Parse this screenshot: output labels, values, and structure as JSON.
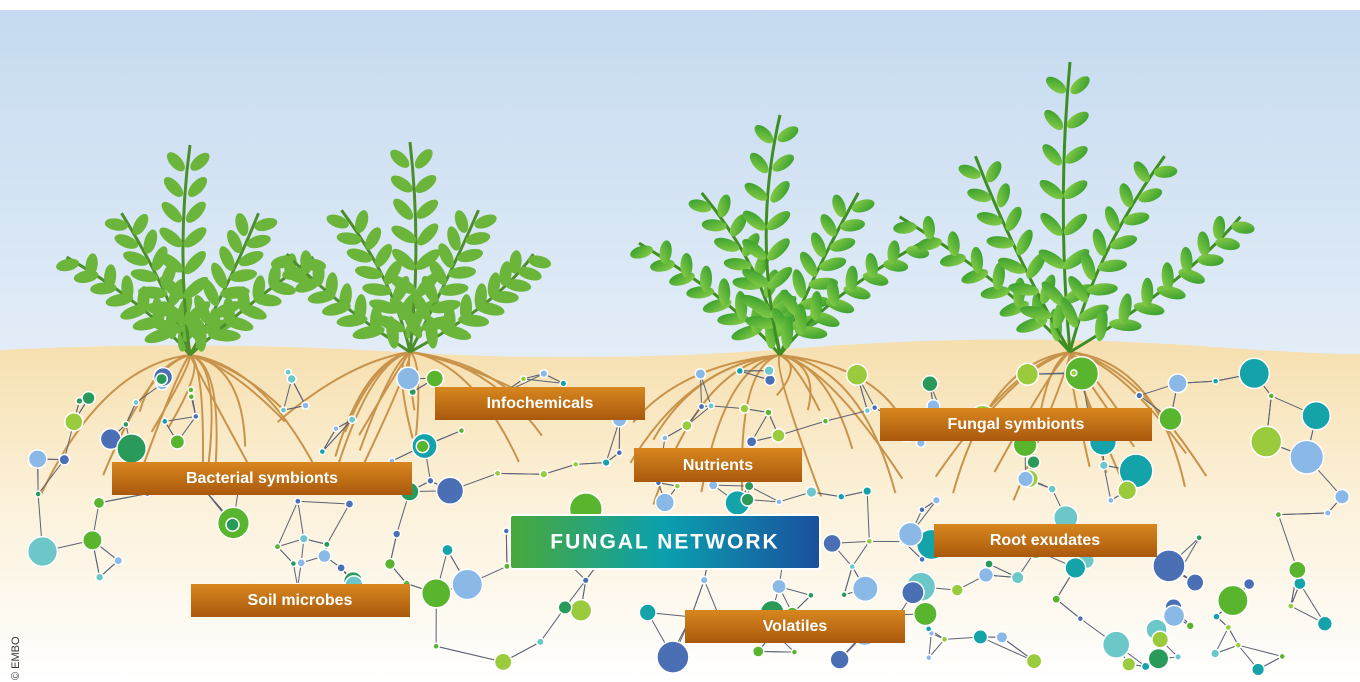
{
  "labels": {
    "infochemicals": "Infochemicals",
    "bacterial_symbionts": "Bacterial symbionts",
    "nutrients": "Nutrients",
    "fungal_symbionts": "Fungal symbionts",
    "root_exudates": "Root exudates",
    "soil_microbes": "Soil microbes",
    "volatiles": "Volatiles"
  },
  "network_label": "FUNGAL NETWORK",
  "credit": "© EMBO"
}
